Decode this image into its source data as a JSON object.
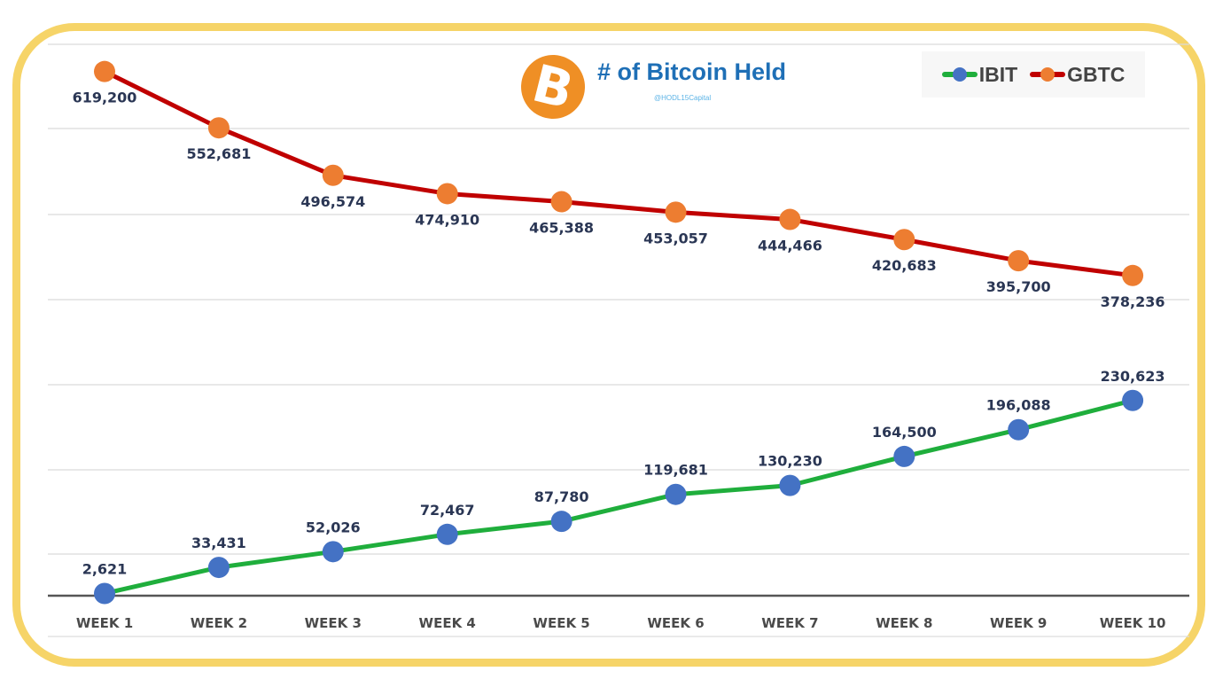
{
  "chart_data": {
    "type": "line",
    "title": "# of Bitcoin Held",
    "subtitle": "@HODL15Capital",
    "xlabel": "",
    "ylabel": "",
    "grid": true,
    "legend_position": "top-right",
    "categories": [
      "WEEK 1",
      "WEEK 2",
      "WEEK 3",
      "WEEK 4",
      "WEEK 5",
      "WEEK 6",
      "WEEK 7",
      "WEEK 8",
      "WEEK 9",
      "WEEK 10"
    ],
    "series": [
      {
        "name": "IBIT",
        "line_color": "#1fae3c",
        "marker_color": "#4472c4",
        "values": [
          2621,
          33431,
          52026,
          72467,
          87780,
          119681,
          130230,
          164500,
          196088,
          230623
        ],
        "labels": [
          "2,621",
          "33,431",
          "52,026",
          "72,467",
          "87,780",
          "119,681",
          "130,230",
          "164,500",
          "196,088",
          "230,623"
        ],
        "label_position": "above"
      },
      {
        "name": "GBTC",
        "line_color": "#c00000",
        "marker_color": "#ed7d31",
        "values": [
          619200,
          552681,
          496574,
          474910,
          465388,
          453057,
          444466,
          420683,
          395700,
          378236
        ],
        "labels": [
          "619,200",
          "552,681",
          "496,574",
          "474,910",
          "465,388",
          "453,057",
          "444,466",
          "420,683",
          "395,700",
          "378,236"
        ],
        "label_position": "below"
      }
    ]
  },
  "logo": {
    "icon": "bitcoin-icon",
    "glyph": "B",
    "color": "#ef8f25"
  },
  "colors": {
    "frame": "#f6d468",
    "title": "#1e6fb6",
    "subtitle": "#5bb3e6",
    "labels": "#2a3654"
  }
}
